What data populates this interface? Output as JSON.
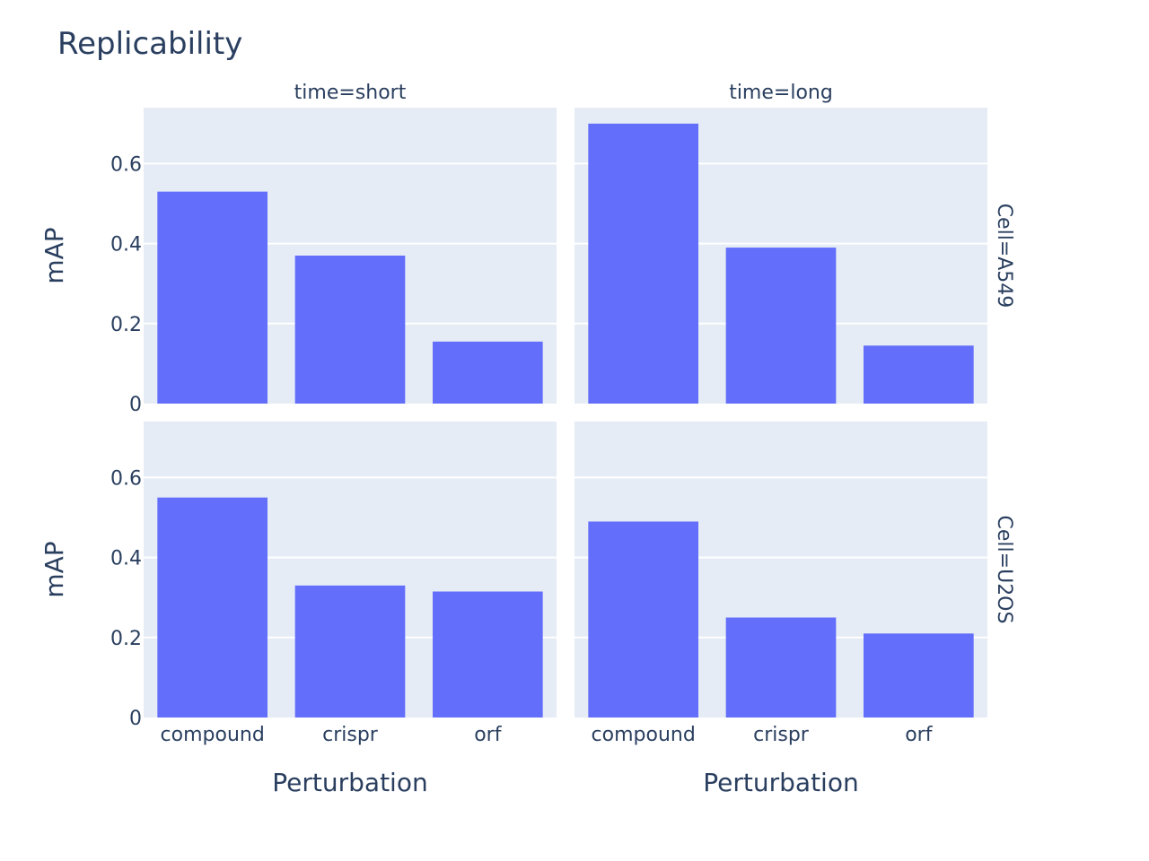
{
  "chart_data": {
    "type": "bar",
    "title": "Replicability",
    "xlabel": "Perturbation",
    "ylabel": "mAP",
    "ylim": [
      0,
      0.74
    ],
    "yticks": [
      0,
      0.2,
      0.4,
      0.6
    ],
    "ytick_labels": [
      "0",
      "0.2",
      "0.4",
      "0.6"
    ],
    "grid": true,
    "bar_color": "#636efa",
    "panel_background": "#e5ecf6",
    "categories": [
      "compound",
      "crispr",
      "orf"
    ],
    "column_facet_labels": [
      "time=short",
      "time=long"
    ],
    "row_facet_labels": [
      "Cell=A549",
      "Cell=U2OS"
    ],
    "panels": [
      {
        "row": 0,
        "col": 0,
        "values": [
          0.53,
          0.37,
          0.155
        ]
      },
      {
        "row": 0,
        "col": 1,
        "values": [
          0.7,
          0.39,
          0.145
        ]
      },
      {
        "row": 1,
        "col": 0,
        "values": [
          0.55,
          0.33,
          0.315
        ]
      },
      {
        "row": 1,
        "col": 1,
        "values": [
          0.49,
          0.25,
          0.21
        ]
      }
    ]
  }
}
